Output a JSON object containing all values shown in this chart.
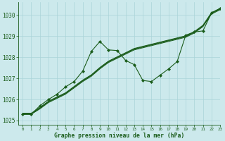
{
  "title": "Graphe pression niveau de la mer (hPa)",
  "bg_color": "#cce9ec",
  "grid_color": "#aad4d8",
  "line_color": "#1a5c1a",
  "xlim": [
    -0.5,
    23
  ],
  "ylim": [
    1024.8,
    1030.6
  ],
  "yticks": [
    1025,
    1026,
    1027,
    1028,
    1029,
    1030
  ],
  "xticks": [
    0,
    1,
    2,
    3,
    4,
    5,
    6,
    7,
    8,
    9,
    10,
    11,
    12,
    13,
    14,
    15,
    16,
    17,
    18,
    19,
    20,
    21,
    22,
    23
  ],
  "series_band": [
    [
      1025.3,
      1025.3,
      1025.55,
      1025.85,
      1026.05,
      1026.25,
      1026.55,
      1026.85,
      1027.1,
      1027.45,
      1027.75,
      1027.95,
      1028.15,
      1028.35,
      1028.45,
      1028.55,
      1028.65,
      1028.75,
      1028.85,
      1028.95,
      1029.15,
      1029.45,
      1030.05,
      1030.25
    ],
    [
      1025.3,
      1025.3,
      1025.58,
      1025.88,
      1026.08,
      1026.28,
      1026.58,
      1026.88,
      1027.13,
      1027.48,
      1027.78,
      1027.98,
      1028.18,
      1028.38,
      1028.48,
      1028.58,
      1028.68,
      1028.78,
      1028.88,
      1028.98,
      1029.18,
      1029.48,
      1030.08,
      1030.28
    ],
    [
      1025.32,
      1025.32,
      1025.6,
      1025.9,
      1026.1,
      1026.3,
      1026.6,
      1026.9,
      1027.15,
      1027.5,
      1027.8,
      1028.0,
      1028.2,
      1028.4,
      1028.5,
      1028.6,
      1028.7,
      1028.8,
      1028.9,
      1029.0,
      1029.2,
      1029.5,
      1030.1,
      1030.3
    ],
    [
      1025.35,
      1025.35,
      1025.62,
      1025.92,
      1026.12,
      1026.32,
      1026.62,
      1026.92,
      1027.17,
      1027.52,
      1027.82,
      1028.02,
      1028.22,
      1028.42,
      1028.52,
      1028.62,
      1028.72,
      1028.82,
      1028.92,
      1029.02,
      1029.22,
      1029.52,
      1030.12,
      1030.32
    ]
  ],
  "series_osc": {
    "x": [
      0,
      1,
      2,
      3,
      4,
      5,
      6,
      7,
      8,
      9,
      10,
      11,
      12,
      13,
      14,
      15,
      16,
      17,
      18,
      19,
      20,
      21,
      22,
      23
    ],
    "y": [
      1025.3,
      1025.3,
      1025.7,
      1026.0,
      1026.25,
      1026.6,
      1026.85,
      1027.35,
      1028.28,
      1028.75,
      1028.35,
      1028.32,
      1027.85,
      1027.65,
      1026.9,
      1026.85,
      1027.15,
      1027.45,
      1027.8,
      1029.05,
      1029.2,
      1029.25,
      1030.1,
      1030.32
    ]
  }
}
